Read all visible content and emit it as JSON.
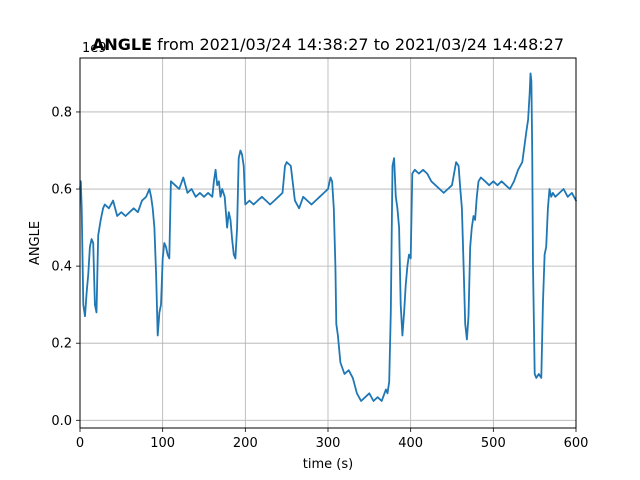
{
  "chart_data": {
    "type": "line",
    "title_bold": "ANGLE",
    "title_rest": " from 2021/03/24 14:38:27 to 2021/03/24 14:48:27",
    "xlabel": "time (s)",
    "ylabel": "ANGLE",
    "y_offset_text": "1e9",
    "xlim": [
      0,
      600
    ],
    "ylim": [
      -0.02,
      0.94
    ],
    "xticks": [
      0,
      100,
      200,
      300,
      400,
      500,
      600
    ],
    "xtick_labels": [
      "0",
      "100",
      "200",
      "300",
      "400",
      "500",
      "600"
    ],
    "yticks": [
      0.0,
      0.2,
      0.4,
      0.6,
      0.8
    ],
    "ytick_labels": [
      "0.0",
      "0.2",
      "0.4",
      "0.6",
      "0.8"
    ],
    "grid": true,
    "line_color": "#1f77b4",
    "series": [
      {
        "x": [
          0,
          1,
          2,
          4,
          6,
          8,
          10,
          12,
          14,
          16,
          18,
          20,
          22,
          25,
          28,
          30,
          35,
          40,
          45,
          50,
          55,
          60,
          65,
          70,
          75,
          80,
          84,
          86,
          88,
          90,
          92,
          94,
          96,
          98,
          100,
          102,
          104,
          106,
          108,
          110,
          115,
          120,
          125,
          130,
          135,
          140,
          145,
          150,
          155,
          160,
          162,
          164,
          166,
          168,
          170,
          172,
          175,
          178,
          180,
          182,
          184,
          186,
          188,
          190,
          192,
          194,
          196,
          198,
          200,
          205,
          210,
          215,
          220,
          225,
          230,
          235,
          240,
          245,
          248,
          250,
          255,
          260,
          265,
          270,
          275,
          280,
          285,
          290,
          295,
          300,
          303,
          305,
          307,
          309,
          310,
          312,
          315,
          320,
          325,
          330,
          335,
          340,
          345,
          350,
          355,
          360,
          365,
          370,
          372,
          374,
          376,
          378,
          380,
          382,
          384,
          386,
          388,
          390,
          392,
          394,
          396,
          398,
          400,
          402,
          405,
          410,
          415,
          420,
          425,
          430,
          435,
          440,
          445,
          450,
          455,
          458,
          460,
          462,
          464,
          466,
          468,
          470,
          472,
          474,
          476,
          478,
          480,
          482,
          485,
          490,
          495,
          500,
          505,
          510,
          515,
          520,
          525,
          530,
          535,
          540,
          542,
          544,
          545,
          546,
          547,
          548,
          550,
          552,
          555,
          558,
          560,
          562,
          564,
          566,
          568,
          570,
          572,
          575,
          580,
          585,
          590,
          595,
          600
        ],
        "y": [
          0.6,
          0.62,
          0.55,
          0.3,
          0.27,
          0.33,
          0.38,
          0.45,
          0.47,
          0.46,
          0.3,
          0.28,
          0.48,
          0.52,
          0.55,
          0.56,
          0.55,
          0.57,
          0.53,
          0.54,
          0.53,
          0.54,
          0.55,
          0.54,
          0.57,
          0.58,
          0.6,
          0.58,
          0.55,
          0.5,
          0.38,
          0.22,
          0.28,
          0.3,
          0.42,
          0.46,
          0.45,
          0.43,
          0.42,
          0.62,
          0.61,
          0.6,
          0.63,
          0.59,
          0.6,
          0.58,
          0.59,
          0.58,
          0.59,
          0.58,
          0.62,
          0.65,
          0.61,
          0.62,
          0.58,
          0.6,
          0.58,
          0.5,
          0.54,
          0.52,
          0.47,
          0.43,
          0.42,
          0.5,
          0.68,
          0.7,
          0.69,
          0.66,
          0.56,
          0.57,
          0.56,
          0.57,
          0.58,
          0.57,
          0.56,
          0.57,
          0.58,
          0.59,
          0.66,
          0.67,
          0.66,
          0.57,
          0.55,
          0.58,
          0.57,
          0.56,
          0.57,
          0.58,
          0.59,
          0.6,
          0.63,
          0.62,
          0.55,
          0.4,
          0.25,
          0.22,
          0.15,
          0.12,
          0.13,
          0.11,
          0.07,
          0.05,
          0.06,
          0.07,
          0.05,
          0.06,
          0.05,
          0.08,
          0.07,
          0.1,
          0.28,
          0.66,
          0.68,
          0.58,
          0.55,
          0.5,
          0.3,
          0.22,
          0.28,
          0.35,
          0.4,
          0.43,
          0.42,
          0.64,
          0.65,
          0.64,
          0.65,
          0.64,
          0.62,
          0.61,
          0.6,
          0.59,
          0.6,
          0.61,
          0.67,
          0.66,
          0.6,
          0.55,
          0.4,
          0.25,
          0.21,
          0.27,
          0.45,
          0.5,
          0.53,
          0.52,
          0.58,
          0.62,
          0.63,
          0.62,
          0.61,
          0.62,
          0.61,
          0.62,
          0.61,
          0.6,
          0.62,
          0.65,
          0.67,
          0.75,
          0.78,
          0.85,
          0.9,
          0.88,
          0.7,
          0.4,
          0.12,
          0.11,
          0.12,
          0.11,
          0.3,
          0.43,
          0.45,
          0.55,
          0.6,
          0.58,
          0.59,
          0.58,
          0.59,
          0.6,
          0.58,
          0.59,
          0.57
        ]
      }
    ]
  }
}
